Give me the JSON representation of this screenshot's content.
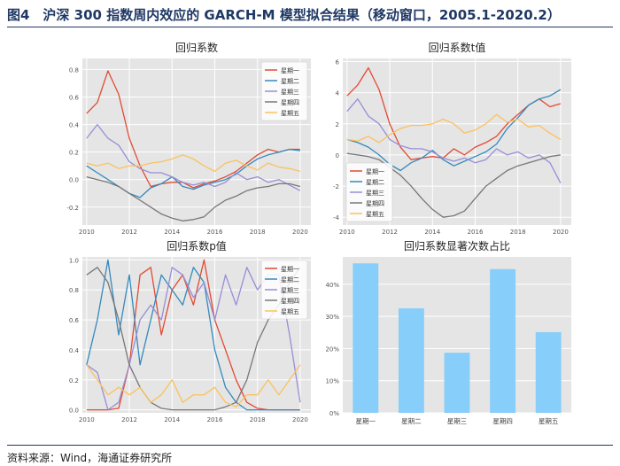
{
  "figure": {
    "title": "图4　沪深 300 指数周内效应的 GARCH-M 模型拟合结果（移动窗口，2005.1-2020.2）",
    "source": "资料来源：Wind，海通证券研究所"
  },
  "colors": {
    "series": [
      "#e24a33",
      "#348abd",
      "#988ed5",
      "#777777",
      "#fbc15e"
    ],
    "bar": "#87cefa",
    "plot_bg": "#e5e5e5",
    "grid": "#ffffff"
  },
  "chart_data": [
    {
      "type": "line",
      "title": "回归系数",
      "xlim": [
        2009.8,
        2020.5
      ],
      "ylim": [
        -0.33,
        0.88
      ],
      "xticks": [
        2010,
        2012,
        2014,
        2016,
        2018,
        2020
      ],
      "yticks": [
        -0.2,
        0.0,
        0.2,
        0.4,
        0.6,
        0.8
      ],
      "ytick_labels": [
        "-0.2",
        "0.0",
        "0.2",
        "0.4",
        "0.6",
        "0.8"
      ],
      "legend": "top-right",
      "x": [
        2010.0,
        2010.5,
        2011.0,
        2011.5,
        2012.0,
        2012.5,
        2013.0,
        2013.5,
        2014.0,
        2014.5,
        2015.0,
        2015.5,
        2016.0,
        2016.5,
        2017.0,
        2017.5,
        2018.0,
        2018.5,
        2019.0,
        2019.5,
        2020.0
      ],
      "series": [
        {
          "name": "星期一",
          "values": [
            0.48,
            0.56,
            0.79,
            0.62,
            0.3,
            0.1,
            -0.05,
            -0.03,
            -0.02,
            -0.02,
            -0.06,
            -0.03,
            -0.01,
            0.02,
            0.06,
            0.12,
            0.18,
            0.22,
            0.2,
            0.22,
            0.22
          ]
        },
        {
          "name": "星期二",
          "values": [
            0.1,
            0.05,
            0.0,
            -0.05,
            -0.1,
            -0.13,
            -0.06,
            -0.03,
            0.02,
            -0.05,
            -0.07,
            -0.04,
            -0.02,
            0.0,
            0.04,
            0.1,
            0.15,
            0.18,
            0.2,
            0.22,
            0.21
          ]
        },
        {
          "name": "星期三",
          "values": [
            0.3,
            0.4,
            0.3,
            0.25,
            0.13,
            0.08,
            0.05,
            0.05,
            0.02,
            -0.02,
            -0.04,
            -0.02,
            -0.05,
            -0.02,
            0.05,
            0.0,
            0.02,
            -0.02,
            0.0,
            -0.04,
            -0.08
          ]
        },
        {
          "name": "星期四",
          "values": [
            0.02,
            0.0,
            -0.02,
            -0.05,
            -0.1,
            -0.15,
            -0.2,
            -0.25,
            -0.28,
            -0.3,
            -0.29,
            -0.27,
            -0.2,
            -0.15,
            -0.12,
            -0.08,
            -0.06,
            -0.05,
            -0.03,
            -0.03,
            -0.05
          ]
        },
        {
          "name": "星期五",
          "values": [
            0.12,
            0.1,
            0.12,
            0.08,
            0.1,
            0.1,
            0.12,
            0.13,
            0.15,
            0.18,
            0.15,
            0.1,
            0.06,
            0.12,
            0.14,
            0.1,
            0.07,
            0.12,
            0.09,
            0.08,
            0.06
          ]
        }
      ]
    },
    {
      "type": "line",
      "title": "回归系数t值",
      "xlim": [
        2009.8,
        2020.5
      ],
      "ylim": [
        -4.5,
        6.2
      ],
      "xticks": [
        2010,
        2012,
        2014,
        2016,
        2018,
        2020
      ],
      "yticks": [
        -4,
        -2,
        0,
        2,
        4,
        6
      ],
      "ytick_labels": [
        "-4",
        "-2",
        "0",
        "2",
        "4",
        "6"
      ],
      "legend": "bottom-left",
      "x": [
        2010.0,
        2010.5,
        2011.0,
        2011.5,
        2012.0,
        2012.5,
        2013.0,
        2013.5,
        2014.0,
        2014.5,
        2015.0,
        2015.5,
        2016.0,
        2016.5,
        2017.0,
        2017.5,
        2018.0,
        2018.5,
        2019.0,
        2019.5,
        2020.0
      ],
      "series": [
        {
          "name": "星期一",
          "values": [
            3.8,
            4.5,
            5.6,
            4.2,
            2.0,
            0.5,
            -0.3,
            -0.2,
            -0.1,
            -0.2,
            0.4,
            0.0,
            0.5,
            0.8,
            1.2,
            2.0,
            2.6,
            3.2,
            3.6,
            3.1,
            3.3
          ]
        },
        {
          "name": "星期二",
          "values": [
            1.0,
            0.8,
            0.5,
            0.0,
            -0.6,
            -1.0,
            -0.5,
            -0.2,
            0.3,
            -0.3,
            -0.7,
            -0.4,
            -0.1,
            0.2,
            0.7,
            1.7,
            2.4,
            3.2,
            3.6,
            3.8,
            4.2
          ]
        },
        {
          "name": "星期三",
          "values": [
            2.8,
            3.6,
            2.5,
            2.0,
            1.0,
            0.6,
            0.4,
            0.4,
            0.2,
            -0.2,
            -0.4,
            -0.2,
            -0.5,
            -0.3,
            0.4,
            0.0,
            0.2,
            -0.2,
            0.0,
            -0.5,
            -1.8
          ]
        },
        {
          "name": "星期四",
          "values": [
            0.1,
            0.0,
            -0.1,
            -0.3,
            -0.8,
            -1.3,
            -2.0,
            -2.8,
            -3.5,
            -4.0,
            -3.9,
            -3.6,
            -2.8,
            -2.0,
            -1.5,
            -1.0,
            -0.7,
            -0.5,
            -0.3,
            -0.1,
            0.0
          ]
        },
        {
          "name": "星期五",
          "values": [
            1.0,
            0.9,
            1.2,
            0.8,
            1.3,
            1.7,
            1.9,
            1.9,
            2.0,
            2.3,
            2.0,
            1.4,
            1.6,
            2.0,
            2.6,
            2.1,
            2.3,
            1.8,
            1.9,
            1.4,
            1.0
          ]
        }
      ]
    },
    {
      "type": "line",
      "title": "回归系数p值",
      "xlim": [
        2009.8,
        2020.5
      ],
      "ylim": [
        -0.02,
        1.02
      ],
      "xticks": [
        2010,
        2012,
        2014,
        2016,
        2018,
        2020
      ],
      "yticks": [
        0.0,
        0.2,
        0.4,
        0.6,
        0.8,
        1.0
      ],
      "ytick_labels": [
        "0.0",
        "0.2",
        "0.4",
        "0.6",
        "0.8",
        "1.0"
      ],
      "legend": "top-right",
      "x": [
        2010.0,
        2010.5,
        2011.0,
        2011.5,
        2012.0,
        2012.5,
        2013.0,
        2013.5,
        2014.0,
        2014.5,
        2015.0,
        2015.5,
        2016.0,
        2016.5,
        2017.0,
        2017.5,
        2018.0,
        2018.5,
        2019.0,
        2019.5,
        2020.0
      ],
      "series": [
        {
          "name": "星期一",
          "values": [
            0.0,
            0.0,
            0.0,
            0.01,
            0.3,
            0.9,
            0.95,
            0.5,
            0.8,
            0.9,
            0.7,
            1.0,
            0.6,
            0.4,
            0.2,
            0.05,
            0.01,
            0.0,
            0.0,
            0.0,
            0.0
          ]
        },
        {
          "name": "星期二",
          "values": [
            0.3,
            0.6,
            1.0,
            0.5,
            0.9,
            0.3,
            0.6,
            0.9,
            0.8,
            0.7,
            0.95,
            0.85,
            0.4,
            0.15,
            0.05,
            0.0,
            0.0,
            0.0,
            0.0,
            0.0,
            0.0
          ]
        },
        {
          "name": "星期三",
          "values": [
            0.3,
            0.25,
            0.0,
            0.05,
            0.3,
            0.6,
            0.7,
            0.6,
            0.95,
            0.9,
            0.75,
            0.85,
            0.6,
            0.9,
            0.7,
            0.95,
            0.8,
            0.9,
            0.9,
            0.5,
            0.05
          ]
        },
        {
          "name": "星期四",
          "values": [
            0.9,
            0.95,
            0.85,
            0.6,
            0.3,
            0.15,
            0.05,
            0.01,
            0.0,
            0.0,
            0.0,
            0.0,
            0.0,
            0.02,
            0.05,
            0.2,
            0.45,
            0.6,
            0.7,
            0.85,
            0.95
          ]
        },
        {
          "name": "星期五",
          "values": [
            0.3,
            0.2,
            0.1,
            0.15,
            0.1,
            0.15,
            0.05,
            0.1,
            0.2,
            0.05,
            0.1,
            0.1,
            0.15,
            0.05,
            0.02,
            0.1,
            0.1,
            0.2,
            0.1,
            0.2,
            0.3
          ]
        }
      ]
    },
    {
      "type": "bar",
      "title": "回归系数显著次数占比",
      "categories": [
        "星期一",
        "星期二",
        "星期三",
        "星期四",
        "星期五"
      ],
      "values": [
        46.5,
        32.5,
        18.7,
        44.7,
        25.1
      ],
      "ylim": [
        0,
        48.5
      ],
      "yticks": [
        0,
        10,
        20,
        30,
        40
      ],
      "ytick_labels": [
        "0%",
        "10%",
        "20%",
        "30%",
        "40%"
      ]
    }
  ]
}
